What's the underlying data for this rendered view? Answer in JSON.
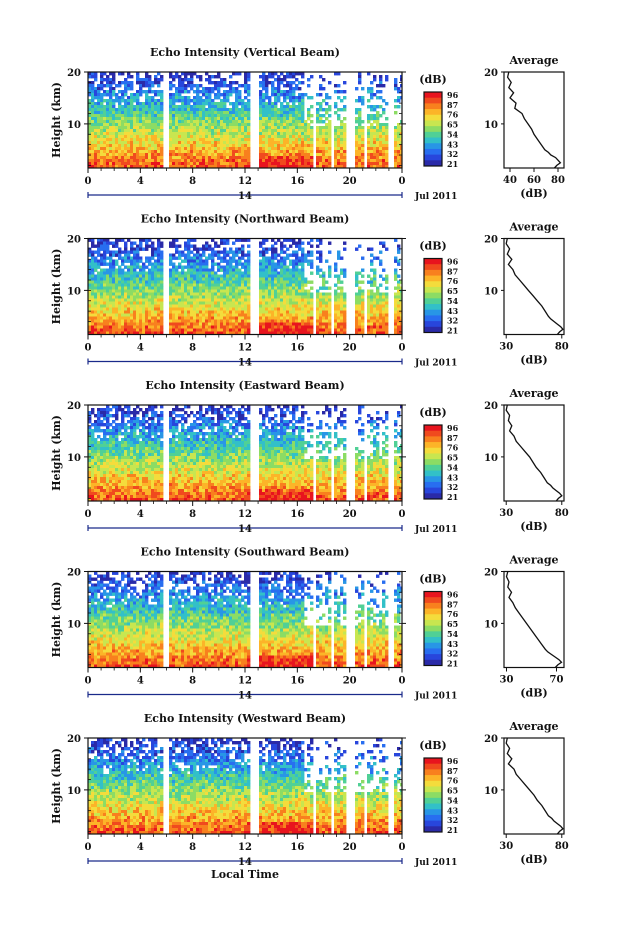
{
  "figure": {
    "xlabel": "Local Time",
    "date_label": "Jul 2011",
    "day_label": "14"
  },
  "colorbar": {
    "unit": "(dB)",
    "ticks": [
      "96",
      "87",
      "76",
      "65",
      "54",
      "43",
      "32",
      "21"
    ],
    "colors": [
      "#e8141e",
      "#f04a1e",
      "#f8801e",
      "#fcb428",
      "#f4dc3c",
      "#c8e650",
      "#8cdc64",
      "#50d096",
      "#32c0c8",
      "#2896e6",
      "#286ef0",
      "#2846dc",
      "#2a2aa8"
    ]
  },
  "chart_data": [
    {
      "type": "heatmap",
      "title": "Echo Intensity (Vertical Beam)",
      "ylabel": "Height (km)",
      "xticks": [
        "0",
        "4",
        "8",
        "12",
        "16",
        "20",
        "0"
      ],
      "yticks": [
        "20",
        "10"
      ],
      "xlim": [
        0,
        24
      ],
      "ylim": [
        1.5,
        20
      ],
      "gaps_hours": [
        [
          5.7,
          6.0
        ],
        [
          12.2,
          13.0
        ],
        [
          17.0,
          17.3
        ],
        [
          18.5,
          18.8
        ],
        [
          19.7,
          20.2
        ],
        [
          21.0,
          21.3
        ],
        [
          22.8,
          23.2
        ]
      ],
      "profile": {
        "title": "Average",
        "xlabel": "(dB)",
        "xticks": [
          "40",
          "60",
          "80"
        ],
        "xlim": [
          35,
          85
        ],
        "yticks": [
          "20",
          "10"
        ],
        "x": [
          39,
          38,
          41,
          39,
          43,
          40,
          45,
          44,
          50,
          52,
          55,
          58,
          60,
          63,
          66,
          69,
          72,
          74,
          78,
          80,
          82,
          79,
          77
        ],
        "y": [
          20,
          19,
          18,
          17,
          16,
          15,
          14,
          13,
          12,
          11,
          10,
          9,
          8,
          7,
          6,
          5,
          4.5,
          4,
          3.5,
          3,
          2.5,
          2,
          1.5
        ]
      }
    },
    {
      "type": "heatmap",
      "title": "Echo Intensity (Northward Beam)",
      "ylabel": "Height (km)",
      "xticks": [
        "0",
        "4",
        "8",
        "12",
        "16",
        "20",
        "0"
      ],
      "yticks": [
        "20",
        "10"
      ],
      "xlim": [
        0,
        24
      ],
      "ylim": [
        1.5,
        20
      ],
      "gaps_hours": [
        [
          5.7,
          6.0
        ],
        [
          12.2,
          13.0
        ],
        [
          17.0,
          17.3
        ],
        [
          18.5,
          18.8
        ],
        [
          19.7,
          20.2
        ],
        [
          21.0,
          21.3
        ],
        [
          22.8,
          23.2
        ]
      ],
      "profile": {
        "title": "Average",
        "xlabel": "(dB)",
        "xticks": [
          "30",
          "80"
        ],
        "xlim": [
          28,
          82
        ],
        "yticks": [
          "20",
          "10"
        ],
        "x": [
          31,
          30,
          33,
          31,
          35,
          32,
          36,
          38,
          42,
          46,
          50,
          54,
          58,
          62,
          65,
          68,
          70,
          73,
          76,
          79,
          81,
          78,
          76
        ],
        "y": [
          20,
          19,
          18,
          17,
          16,
          15,
          14,
          13,
          12,
          11,
          10,
          9,
          8,
          7,
          6,
          5,
          4.5,
          4,
          3.5,
          3,
          2.5,
          2,
          1.5
        ]
      }
    },
    {
      "type": "heatmap",
      "title": "Echo Intensity (Eastward Beam)",
      "ylabel": "Height (km)",
      "xticks": [
        "0",
        "4",
        "8",
        "12",
        "16",
        "20",
        "0"
      ],
      "yticks": [
        "20",
        "10"
      ],
      "xlim": [
        0,
        24
      ],
      "ylim": [
        1.5,
        20
      ],
      "gaps_hours": [
        [
          5.7,
          6.0
        ],
        [
          12.2,
          13.0
        ],
        [
          17.0,
          17.3
        ],
        [
          18.5,
          18.8
        ],
        [
          19.7,
          20.2
        ],
        [
          21.0,
          21.3
        ],
        [
          22.8,
          23.2
        ]
      ],
      "profile": {
        "title": "Average",
        "xlabel": "(dB)",
        "xticks": [
          "30",
          "80"
        ],
        "xlim": [
          28,
          82
        ],
        "yticks": [
          "20",
          "10"
        ],
        "x": [
          31,
          30,
          33,
          32,
          35,
          33,
          37,
          39,
          43,
          47,
          51,
          54,
          57,
          61,
          64,
          67,
          70,
          72,
          75,
          78,
          80,
          77,
          75
        ],
        "y": [
          20,
          19,
          18,
          17,
          16,
          15,
          14,
          13,
          12,
          11,
          10,
          9,
          8,
          7,
          6,
          5,
          4.5,
          4,
          3.5,
          3,
          2.5,
          2,
          1.5
        ]
      }
    },
    {
      "type": "heatmap",
      "title": "Echo Intensity (Southward Beam)",
      "ylabel": "Height (km)",
      "xticks": [
        "0",
        "4",
        "8",
        "12",
        "16",
        "20",
        "0"
      ],
      "yticks": [
        "20",
        "10"
      ],
      "xlim": [
        0,
        24
      ],
      "ylim": [
        1.5,
        20
      ],
      "gaps_hours": [
        [
          5.7,
          6.0
        ],
        [
          12.2,
          13.0
        ],
        [
          17.0,
          17.3
        ],
        [
          18.5,
          18.8
        ],
        [
          19.7,
          20.2
        ],
        [
          21.0,
          21.3
        ],
        [
          22.8,
          23.2
        ]
      ],
      "profile": {
        "title": "Average",
        "xlabel": "(dB)",
        "xticks": [
          "30",
          "70"
        ],
        "xlim": [
          28,
          76
        ],
        "yticks": [
          "20",
          "10"
        ],
        "x": [
          31,
          30,
          32,
          31,
          34,
          32,
          35,
          37,
          40,
          43,
          46,
          49,
          52,
          55,
          58,
          61,
          63,
          66,
          69,
          72,
          74,
          71,
          69
        ],
        "y": [
          20,
          19,
          18,
          17,
          16,
          15,
          14,
          13,
          12,
          11,
          10,
          9,
          8,
          7,
          6,
          5,
          4.5,
          4,
          3.5,
          3,
          2.5,
          2,
          1.5
        ]
      }
    },
    {
      "type": "heatmap",
      "title": "Echo Intensity (Westward Beam)",
      "ylabel": "Height (km)",
      "xticks": [
        "0",
        "4",
        "8",
        "12",
        "16",
        "20",
        "0"
      ],
      "yticks": [
        "20",
        "10"
      ],
      "xlim": [
        0,
        24
      ],
      "ylim": [
        1.5,
        20
      ],
      "gaps_hours": [
        [
          5.7,
          6.0
        ],
        [
          12.2,
          13.0
        ],
        [
          17.0,
          17.3
        ],
        [
          18.5,
          18.8
        ],
        [
          19.7,
          20.2
        ],
        [
          21.0,
          21.3
        ],
        [
          22.8,
          23.2
        ]
      ],
      "profile": {
        "title": "Average",
        "xlabel": "(dB)",
        "xticks": [
          "30",
          "80"
        ],
        "xlim": [
          28,
          82
        ],
        "yticks": [
          "20",
          "10"
        ],
        "x": [
          31,
          30,
          33,
          31,
          35,
          32,
          37,
          39,
          43,
          47,
          51,
          55,
          58,
          62,
          65,
          68,
          71,
          73,
          76,
          79,
          81,
          78,
          76
        ],
        "y": [
          20,
          19,
          18,
          17,
          16,
          15,
          14,
          13,
          12,
          11,
          10,
          9,
          8,
          7,
          6,
          5,
          4.5,
          4,
          3.5,
          3,
          2.5,
          2,
          1.5
        ]
      }
    }
  ]
}
